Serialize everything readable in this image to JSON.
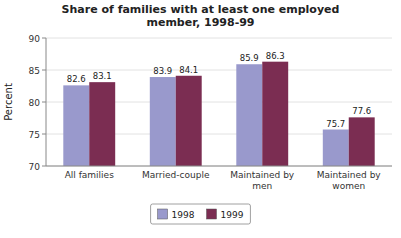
{
  "chart_data": {
    "type": "bar",
    "title": "Share of families with at least one employed\nmember, 1998-99",
    "categories": [
      "All families",
      "Married-couple",
      "Maintained by\nmen",
      "Maintained by\nwomen"
    ],
    "series": [
      {
        "name": "1998",
        "color": "#9999cc",
        "values": [
          82.6,
          83.9,
          85.9,
          75.7
        ]
      },
      {
        "name": "1999",
        "color": "#7b2d52",
        "values": [
          83.1,
          84.1,
          86.3,
          77.6
        ]
      }
    ],
    "ylabel": "Percent",
    "ylim": [
      70,
      90
    ],
    "yticks": [
      70,
      75,
      80,
      85,
      90
    ],
    "grid": true,
    "data_labels": true,
    "legend": "bottom"
  }
}
